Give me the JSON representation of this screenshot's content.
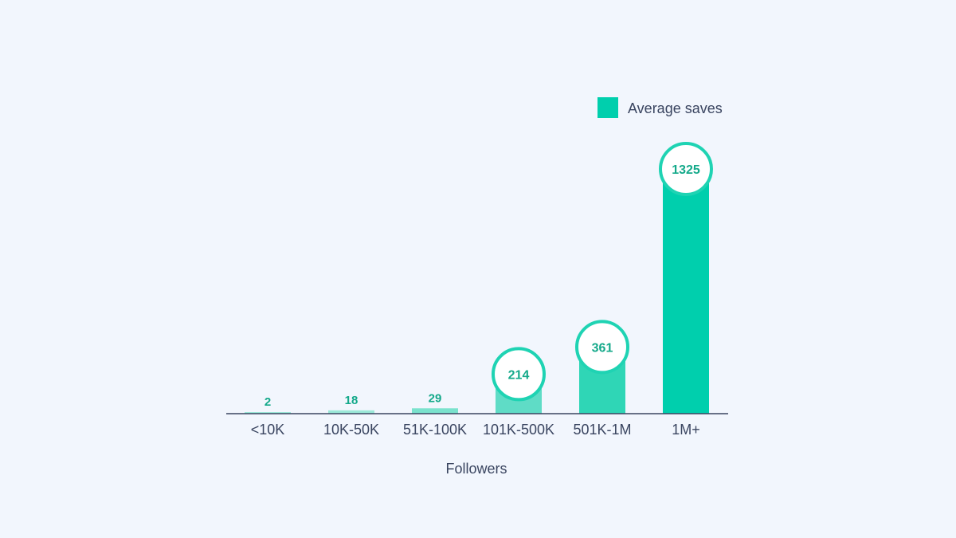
{
  "chart_data": {
    "type": "bar",
    "categories": [
      "<10K",
      "10K-50K",
      "51K-100K",
      "101K-500K",
      "501K-1M",
      "1M+"
    ],
    "series": [
      {
        "name": "Average saves",
        "values": [
          2,
          18,
          29,
          214,
          361,
          1325
        ]
      }
    ],
    "xlabel": "Followers",
    "ylabel": "",
    "ylim": [
      0,
      1325
    ],
    "grid": false,
    "legend": {
      "placement": "top-right",
      "entries": [
        "Average saves"
      ]
    },
    "highlighted_categories": [
      "101K-500K",
      "501K-1M",
      "1M+"
    ],
    "bar_colors": [
      "#9be8d8",
      "#9be8d8",
      "#7ae2cd",
      "#5fdcc6",
      "#2fd6b6",
      "#00cfad"
    ],
    "label_color": "#14a98a",
    "axis_color": "#3a4560"
  }
}
